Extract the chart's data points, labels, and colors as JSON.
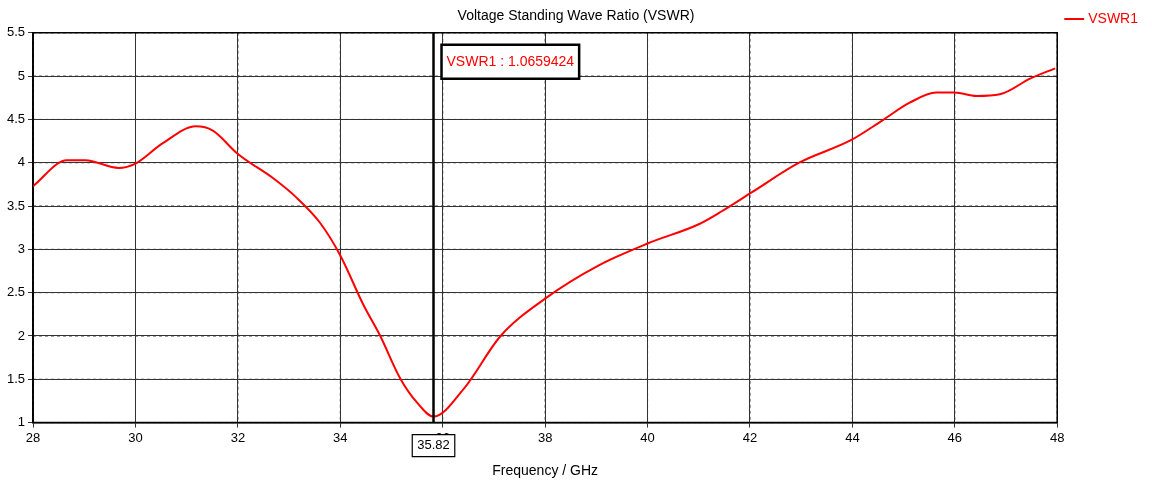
{
  "chart_data": {
    "type": "line",
    "title": "Voltage Standing Wave Ratio (VSWR)",
    "xlabel": "Frequency / GHz",
    "series": [
      {
        "name": "VSWR1",
        "color": "#ff0000",
        "x": [
          28.0,
          28.66,
          29.02,
          29.67,
          30.0,
          30.52,
          31.18,
          31.51,
          32.0,
          32.69,
          33.14,
          33.6,
          34.0,
          34.45,
          34.78,
          35.17,
          35.5,
          35.82,
          36.41,
          37.13,
          38.02,
          39.03,
          40.01,
          41.0,
          41.45,
          42.04,
          42.96,
          43.97,
          44.59,
          45.11,
          45.64,
          46.0,
          46.42,
          46.88,
          47.47,
          47.96
        ],
        "values": [
          3.73,
          4.03,
          4.03,
          3.94,
          3.99,
          4.22,
          4.42,
          4.37,
          4.1,
          3.82,
          3.6,
          3.31,
          2.93,
          2.36,
          2.0,
          1.51,
          1.23,
          1.07,
          1.39,
          2.0,
          2.44,
          2.81,
          3.07,
          3.29,
          3.44,
          3.66,
          4.0,
          4.26,
          4.49,
          4.69,
          4.81,
          4.81,
          4.77,
          4.79,
          4.97,
          5.09
        ]
      }
    ],
    "xlim": [
      28,
      48
    ],
    "xticks": [
      28,
      30,
      32,
      34,
      36,
      38,
      40,
      42,
      44,
      46,
      48
    ],
    "ylim": [
      1,
      5.5
    ],
    "yticks": [
      1,
      1.5,
      2,
      2.5,
      3,
      3.5,
      4,
      4.5,
      5,
      5.5
    ],
    "ref_lines": [
      {
        "axis": "x",
        "value": 35.82,
        "label": "35.82",
        "color": "#000000"
      }
    ],
    "annotations": [
      "VSWR1 : 1.0659424"
    ],
    "grid": true,
    "legend": "right",
    "marker": "none",
    "line_style": "solid"
  }
}
